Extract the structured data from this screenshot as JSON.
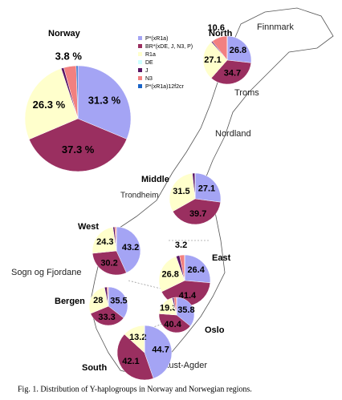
{
  "chart_data": [
    {
      "type": "pie",
      "title": "Norway",
      "categories": [
        "P*(xR1a)",
        "BR*(xDE, J, N3, P)",
        "R1a",
        "DE",
        "J",
        "N3",
        "P*(xR1a)12f2cr"
      ],
      "colors": [
        "#a4a4f4",
        "#9a2f60",
        "#ffffcc",
        "#ccffff",
        "#5a1464",
        "#f28080",
        "#1a64c8"
      ],
      "values": [
        31.3,
        37.3,
        26.3,
        0,
        0.8,
        3.8,
        0.5
      ],
      "value_labels": [
        "31.3 %",
        "37.3 %",
        "26.3 %",
        null,
        null,
        "3.8 %",
        null
      ]
    },
    {
      "type": "pie",
      "title": "North",
      "values": [
        26.8,
        34.7,
        27.1,
        0,
        0.8,
        10.6,
        0
      ]
    },
    {
      "type": "pie",
      "title": "Middle",
      "values": [
        27.1,
        39.7,
        31.5,
        0,
        1.7,
        0,
        0
      ]
    },
    {
      "type": "pie",
      "title": "West",
      "values": [
        43.2,
        30.2,
        24.3,
        0,
        1.2,
        1.1,
        0
      ]
    },
    {
      "type": "pie",
      "title": "East",
      "values": [
        26.4,
        41.4,
        26.8,
        0,
        2.2,
        3.2,
        0
      ]
    },
    {
      "type": "pie",
      "title": "Bergen",
      "values": [
        35.5,
        33.3,
        28,
        0,
        2.0,
        1.2,
        0
      ]
    },
    {
      "type": "pie",
      "title": "Oslo",
      "values": [
        35.8,
        40.4,
        19.3,
        0.5,
        1.5,
        2.5,
        0
      ]
    },
    {
      "type": "pie",
      "title": "South",
      "values": [
        44.7,
        42.1,
        13.2,
        0,
        0,
        0,
        0
      ]
    }
  ],
  "places": [
    "Finnmark",
    "Troms",
    "Nordland",
    "Trondheim",
    "Sogn og Fjordane",
    "Aust-Agder"
  ],
  "caption": "Fig. 1. Distribution of Y-haplogroups in Norway and Norwegian regions."
}
